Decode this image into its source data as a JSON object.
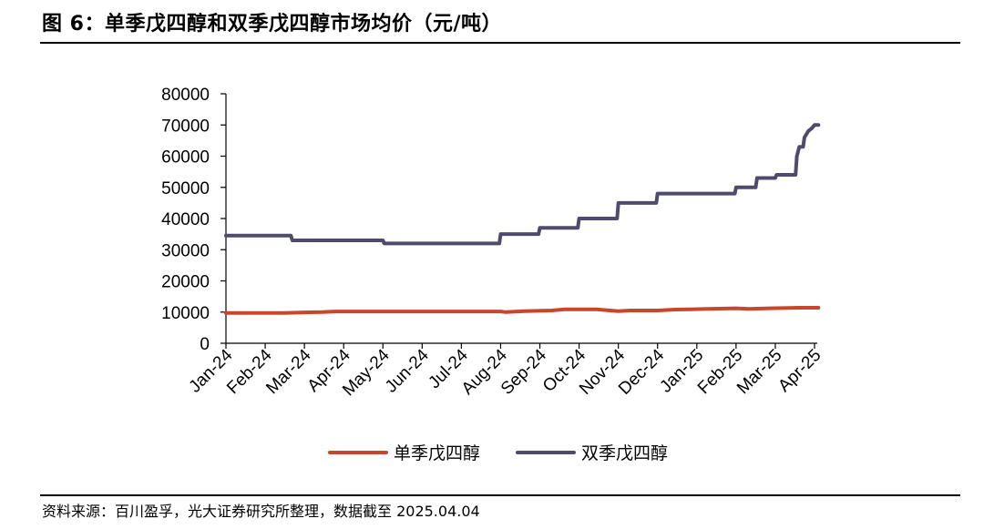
{
  "header": {
    "title": "图 6：单季戊四醇和双季戊四醇市场均价（元/吨）"
  },
  "footer": {
    "source": "资料来源：百川盈孚，光大证券研究所整理，数据截至 2025.04.04"
  },
  "chart_data": {
    "type": "line",
    "title": "",
    "xlabel": "",
    "ylabel": "",
    "ylim": [
      0,
      80000
    ],
    "yticks": [
      "0",
      "10000",
      "20000",
      "30000",
      "40000",
      "50000",
      "60000",
      "70000",
      "80000"
    ],
    "xticks": [
      "Jan-24",
      "Feb-24",
      "Mar-24",
      "Apr-24",
      "May-24",
      "Jun-24",
      "Jul-24",
      "Aug-24",
      "Sep-24",
      "Oct-24",
      "Nov-24",
      "Dec-24",
      "Jan-25",
      "Feb-25",
      "Mar-25",
      "Apr-25"
    ],
    "grid": false,
    "legend_position": "bottom",
    "series": [
      {
        "name": "单季戊四醇",
        "color": "#c8472b",
        "points": [
          [
            "2024-01-01",
            9700
          ],
          [
            "2024-02-15",
            9700
          ],
          [
            "2024-03-01",
            9900
          ],
          [
            "2024-03-15",
            10000
          ],
          [
            "2024-03-25",
            10200
          ],
          [
            "2024-08-01",
            10200
          ],
          [
            "2024-08-05",
            10000
          ],
          [
            "2024-08-20",
            10300
          ],
          [
            "2024-09-10",
            10500
          ],
          [
            "2024-09-20",
            10900
          ],
          [
            "2024-10-15",
            10900
          ],
          [
            "2024-10-20",
            10700
          ],
          [
            "2024-11-01",
            10300
          ],
          [
            "2024-11-10",
            10500
          ],
          [
            "2024-12-01",
            10500
          ],
          [
            "2024-12-15",
            10800
          ],
          [
            "2025-01-10",
            11000
          ],
          [
            "2025-02-01",
            11200
          ],
          [
            "2025-02-10",
            11000
          ],
          [
            "2025-02-25",
            11200
          ],
          [
            "2025-03-20",
            11400
          ],
          [
            "2025-04-04",
            11400
          ]
        ]
      },
      {
        "name": "双季戊四醇",
        "color": "#4f4b6e",
        "points": [
          [
            "2024-01-01",
            34500
          ],
          [
            "2024-02-20",
            34500
          ],
          [
            "2024-02-21",
            33000
          ],
          [
            "2024-05-01",
            33000
          ],
          [
            "2024-05-02",
            32000
          ],
          [
            "2024-07-31",
            32000
          ],
          [
            "2024-08-01",
            35000
          ],
          [
            "2024-08-31",
            35000
          ],
          [
            "2024-09-01",
            37000
          ],
          [
            "2024-09-30",
            37000
          ],
          [
            "2024-10-01",
            40000
          ],
          [
            "2024-10-31",
            40000
          ],
          [
            "2024-11-01",
            45000
          ],
          [
            "2024-11-30",
            45000
          ],
          [
            "2024-12-01",
            48000
          ],
          [
            "2025-01-31",
            48000
          ],
          [
            "2025-02-01",
            50000
          ],
          [
            "2025-02-15",
            50000
          ],
          [
            "2025-02-16",
            53000
          ],
          [
            "2025-03-01",
            53000
          ],
          [
            "2025-03-02",
            54000
          ],
          [
            "2025-03-17",
            54000
          ],
          [
            "2025-03-18",
            60000
          ],
          [
            "2025-03-20",
            63000
          ],
          [
            "2025-03-23",
            63000
          ],
          [
            "2025-03-24",
            66000
          ],
          [
            "2025-03-27",
            68000
          ],
          [
            "2025-03-30",
            69000
          ],
          [
            "2025-04-01",
            70000
          ],
          [
            "2025-04-04",
            70000
          ]
        ]
      }
    ]
  }
}
